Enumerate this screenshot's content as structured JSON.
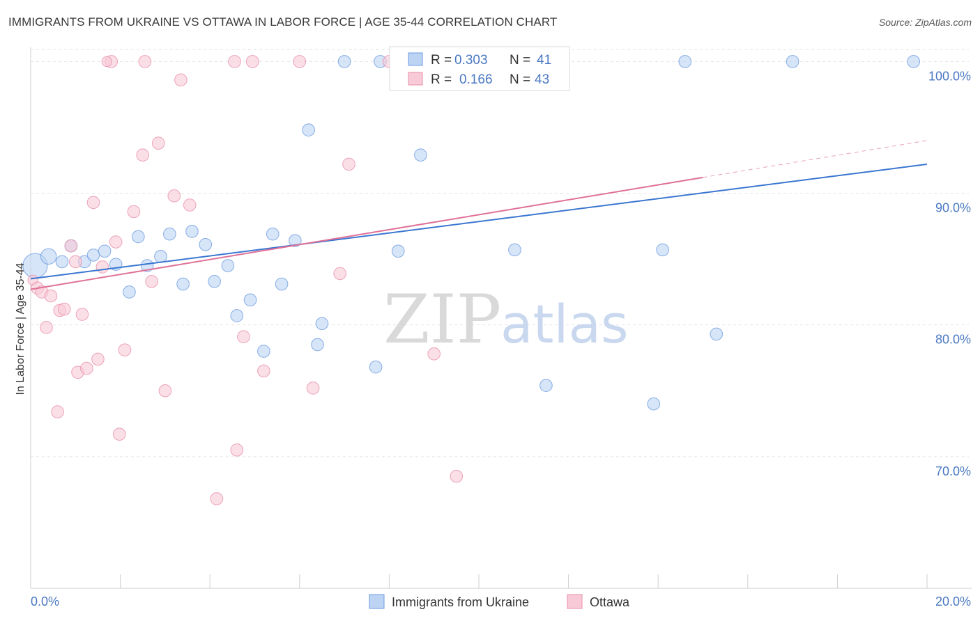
{
  "title": "IMMIGRANTS FROM UKRAINE VS OTTAWA IN LABOR FORCE | AGE 35-44 CORRELATION CHART",
  "source": "Source: ZipAtlas.com",
  "watermark": {
    "zip": "ZIP",
    "atlas": "atlas"
  },
  "chart_data": {
    "type": "scatter",
    "title": "IMMIGRANTS FROM UKRAINE VS OTTAWA IN LABOR FORCE | AGE 35-44 CORRELATION CHART",
    "ylabel": "In Labor Force | Age 35-44",
    "xlabel": "",
    "xlim": [
      0,
      20
    ],
    "ylim": [
      60,
      101.5
    ],
    "y_ticks": [
      70,
      80,
      90,
      100
    ],
    "y_tick_labels": [
      "70.0%",
      "80.0%",
      "90.0%",
      "100.0%"
    ],
    "x_tick_labels": [
      "0.0%",
      "20.0%"
    ],
    "grid": true,
    "legend_inset": {
      "rows": [
        {
          "r_label": "R =",
          "r_value": "0.303",
          "n_label": "N =",
          "n_value": "41"
        },
        {
          "r_label": "R =",
          "r_value": "0.166",
          "n_label": "N =",
          "n_value": "43"
        }
      ]
    },
    "series": [
      {
        "name": "Immigrants from Ukraine",
        "color": "#6b9be0",
        "fill": "#bcd3f3",
        "trend": {
          "x": [
            0,
            20
          ],
          "y": [
            83.5,
            92.2
          ]
        },
        "points": [
          [
            0.1,
            84.5,
            22
          ],
          [
            0.4,
            85.2,
            14
          ],
          [
            0.7,
            84.8,
            11
          ],
          [
            0.9,
            86.0,
            11
          ],
          [
            1.2,
            84.8,
            11
          ],
          [
            1.4,
            85.3,
            11
          ],
          [
            1.65,
            85.6,
            11
          ],
          [
            1.9,
            84.6,
            11
          ],
          [
            2.2,
            82.5,
            11
          ],
          [
            2.4,
            86.7,
            11
          ],
          [
            2.6,
            84.5,
            11
          ],
          [
            2.9,
            85.2,
            11
          ],
          [
            3.1,
            86.9,
            11
          ],
          [
            3.4,
            83.1,
            11
          ],
          [
            3.6,
            87.1,
            11
          ],
          [
            3.9,
            86.1,
            11
          ],
          [
            4.1,
            83.3,
            11
          ],
          [
            4.4,
            84.5,
            11
          ],
          [
            4.6,
            80.7,
            11
          ],
          [
            4.9,
            81.9,
            11
          ],
          [
            5.2,
            78.0,
            11
          ],
          [
            5.4,
            86.9,
            11
          ],
          [
            5.9,
            86.4,
            11
          ],
          [
            5.6,
            83.1,
            11
          ],
          [
            6.2,
            94.8,
            11
          ],
          [
            6.4,
            78.5,
            11
          ],
          [
            6.5,
            80.1,
            11
          ],
          [
            7.0,
            100.0,
            11
          ],
          [
            7.7,
            76.8,
            11
          ],
          [
            7.8,
            100.0,
            11
          ],
          [
            8.2,
            85.6,
            11
          ],
          [
            8.7,
            92.9,
            11
          ],
          [
            10.2,
            100.0,
            11
          ],
          [
            10.8,
            85.7,
            11
          ],
          [
            11.5,
            75.4,
            11
          ],
          [
            13.9,
            74.0,
            11
          ],
          [
            14.1,
            85.7,
            11
          ],
          [
            14.6,
            100.0,
            11
          ],
          [
            15.3,
            79.3,
            11
          ],
          [
            17.0,
            100.0,
            11
          ],
          [
            19.7,
            100.0,
            11
          ]
        ]
      },
      {
        "name": "Ottawa",
        "color": "#e78faa",
        "fill": "#f8c9d7",
        "trend": {
          "x": [
            0,
            15
          ],
          "y": [
            82.7,
            91.2
          ]
        },
        "trend_dashed": {
          "x": [
            15,
            20
          ],
          "y": [
            91.2,
            94.0
          ]
        },
        "points": [
          [
            0.05,
            83.4,
            9
          ],
          [
            0.15,
            82.8,
            11
          ],
          [
            0.25,
            82.5,
            11
          ],
          [
            0.35,
            79.8,
            11
          ],
          [
            0.45,
            82.2,
            11
          ],
          [
            0.6,
            73.4,
            11
          ],
          [
            0.65,
            81.1,
            11
          ],
          [
            0.75,
            81.2,
            11
          ],
          [
            0.9,
            86.0,
            11
          ],
          [
            1.0,
            84.8,
            11
          ],
          [
            1.05,
            76.4,
            11
          ],
          [
            1.15,
            80.8,
            11
          ],
          [
            1.25,
            76.7,
            11
          ],
          [
            1.4,
            89.3,
            11
          ],
          [
            1.5,
            77.4,
            11
          ],
          [
            1.6,
            84.4,
            11
          ],
          [
            1.8,
            100.0,
            11
          ],
          [
            1.9,
            86.3,
            11
          ],
          [
            1.98,
            71.7,
            11
          ],
          [
            2.1,
            78.1,
            11
          ],
          [
            2.3,
            88.6,
            11
          ],
          [
            2.5,
            92.9,
            11
          ],
          [
            2.55,
            100.0,
            11
          ],
          [
            2.7,
            83.3,
            11
          ],
          [
            2.85,
            93.8,
            11
          ],
          [
            3.0,
            75.0,
            11
          ],
          [
            3.2,
            89.8,
            11
          ],
          [
            3.35,
            98.6,
            11
          ],
          [
            3.55,
            89.1,
            11
          ],
          [
            4.15,
            66.8,
            11
          ],
          [
            4.55,
            100.0,
            11
          ],
          [
            4.6,
            70.5,
            11
          ],
          [
            4.75,
            79.1,
            11
          ],
          [
            4.95,
            100.0,
            11
          ],
          [
            5.2,
            76.5,
            11
          ],
          [
            6.0,
            100.0,
            11
          ],
          [
            6.3,
            75.2,
            11
          ],
          [
            6.9,
            83.9,
            11
          ],
          [
            7.1,
            92.2,
            11
          ],
          [
            8.0,
            100.0,
            11
          ],
          [
            9.0,
            77.8,
            11
          ],
          [
            9.5,
            68.5,
            11
          ],
          [
            1.7,
            100.0,
            9
          ]
        ]
      }
    ]
  }
}
